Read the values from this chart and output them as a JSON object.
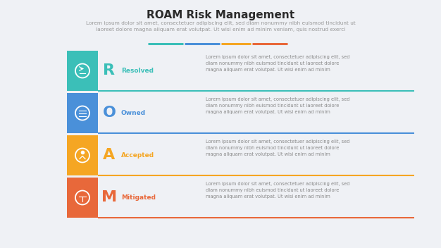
{
  "title": "ROAM Risk Management",
  "subtitle": "Lorem ipsum dolor sit amet, consectetuer adipiscing elit, sed diam nonummy nibh euismod tincidunt ut\nlaoreet dolore magna aliquam erat volutpat. Ut wisi enim ad minim veniam, quis nostrud exerci",
  "background_color": "#eff1f5",
  "title_color": "#2b2b2b",
  "subtitle_color": "#999999",
  "divider_colors": [
    "#3bbfb8",
    "#4a90d9",
    "#f5a623",
    "#e8683a"
  ],
  "rows": [
    {
      "letter": "R",
      "label": "Resolved",
      "color": "#3bbfb8",
      "description": "Lorem ipsum dolor sit amet, consectetuer adipiscing elit, sed\ndiam nonummy nibh euismod tincidunt ut laoreet dolore\nmagna aliquam erat volutpat. Ut wisi enim ad minim"
    },
    {
      "letter": "O",
      "label": "Owned",
      "color": "#4a90d9",
      "description": "Lorem ipsum dolor sit amet, consectetuer adipiscing elit, sed\ndiam nonummy nibh euismod tincidunt ut laoreet dolore\nmagna aliquam erat volutpat. Ut wisi enim ad minim"
    },
    {
      "letter": "A",
      "label": "Accepted",
      "color": "#f5a623",
      "description": "Lorem ipsum dolor sit amet, consectetuer adipiscing elit, sed\ndiam nonummy nibh euismod tincidunt ut laoreet dolore\nmagna aliquam erat volutpat. Ut wisi enim ad minim"
    },
    {
      "letter": "M",
      "label": "Mitigated",
      "color": "#e8683a",
      "description": "Lorem ipsum dolor sit amet, consectetuer adipiscing elit, sed\ndiam nonummy nibh euismod tincidunt ut laoreet dolore\nmagna aliquam erat volutpat. Ut wisi enim ad minim"
    }
  ],
  "figsize": [
    6.26,
    3.52
  ],
  "dpi": 100
}
